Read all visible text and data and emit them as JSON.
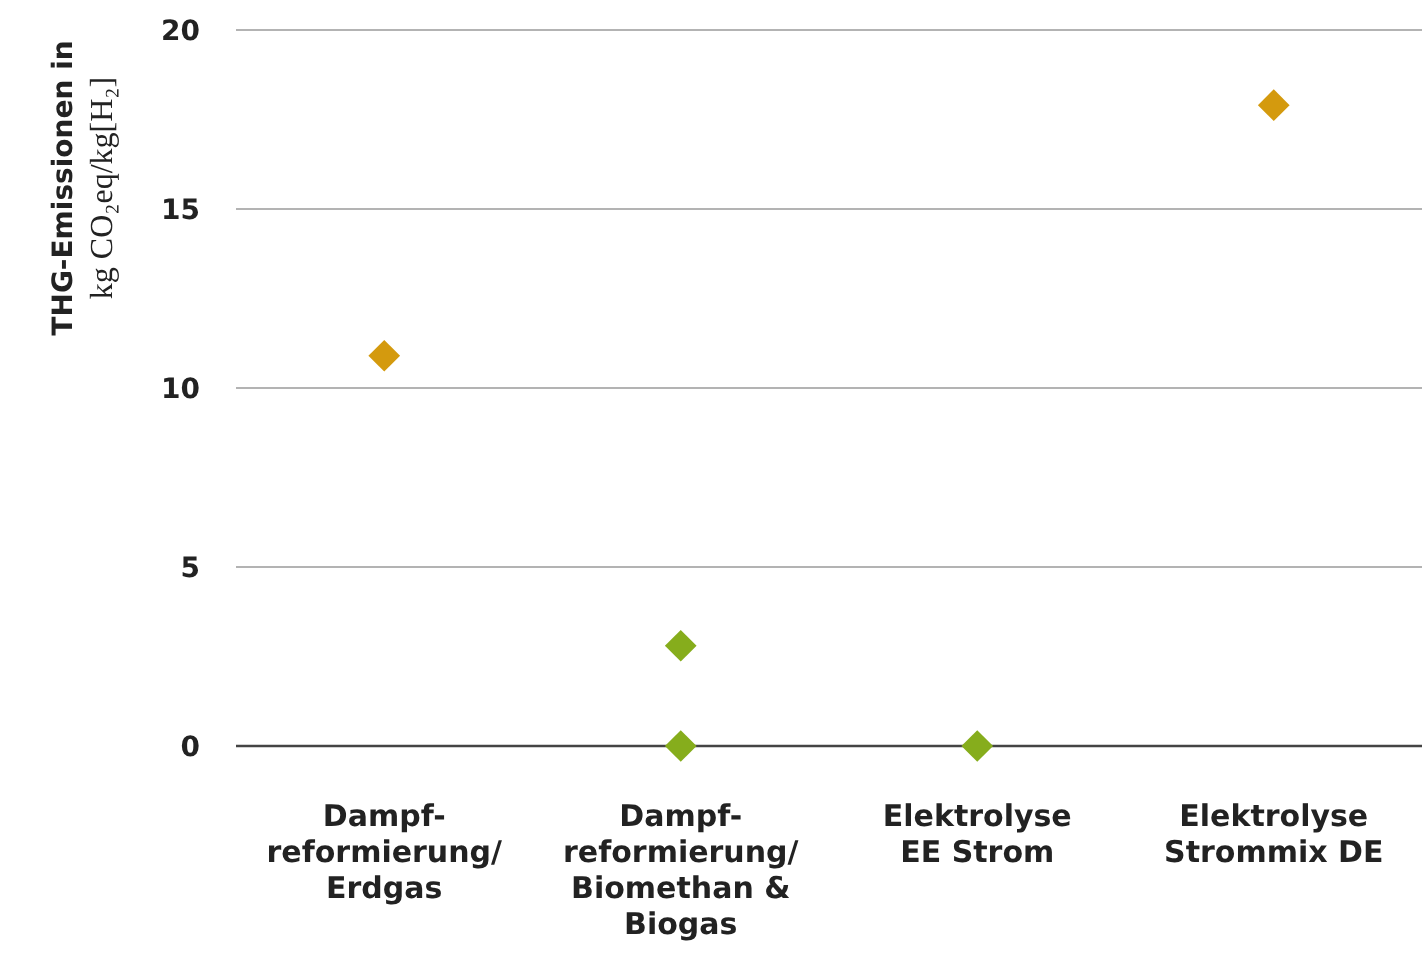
{
  "chart_data": {
    "type": "scatter",
    "ylabel": "THG-Emissionen in\nkg CO₂eq/kg[H₂]",
    "categories": [
      "Dampf-\nreformierung/\nErdgas",
      "Dampf-\nreformierung/\nBiomethan &\nBiogas",
      "Elektrolyse\nEE Strom",
      "Elektrolyse\nStrommix DE"
    ],
    "series": [
      {
        "color": "#d49a0e",
        "values": [
          10.9,
          null,
          null,
          17.9
        ]
      },
      {
        "color": "#86ad1c",
        "values": [
          null,
          2.8,
          0,
          null
        ]
      },
      {
        "color": "#86ad1c",
        "values": [
          null,
          0,
          null,
          null
        ]
      }
    ],
    "ylim": [
      0,
      20
    ],
    "yticks": [
      0,
      5,
      10,
      15,
      20
    ],
    "grid": "y",
    "marker": "diamond"
  }
}
